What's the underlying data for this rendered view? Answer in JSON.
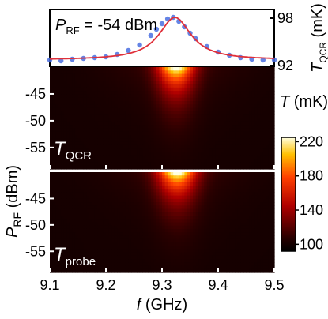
{
  "chart_data": [
    {
      "type": "line",
      "panel": "top",
      "annotation": {
        "main": "P",
        "sub": "RF",
        "rest": " = -54 dBm"
      },
      "ylabel": {
        "main": "T",
        "sub": "QCR",
        "rest": " (mK)"
      },
      "yticks": [
        "92",
        "98"
      ],
      "ylim": [
        92,
        99
      ],
      "xlim": [
        9.1,
        9.5
      ],
      "colors": {
        "data": "#4a6fe0",
        "fit": "#e0303a"
      },
      "series": [
        {
          "kind": "markers",
          "x": [
            9.1,
            9.12,
            9.14,
            9.16,
            9.18,
            9.2,
            9.22,
            9.24,
            9.26,
            9.28,
            9.29,
            9.3,
            9.31,
            9.32,
            9.33,
            9.34,
            9.35,
            9.36,
            9.38,
            9.4,
            9.42,
            9.44,
            9.46,
            9.48,
            9.5
          ],
          "y": [
            92.7,
            92.6,
            92.8,
            92.9,
            93.0,
            93.1,
            93.4,
            93.9,
            94.6,
            95.8,
            96.6,
            97.3,
            97.9,
            98.1,
            97.6,
            96.9,
            96.1,
            95.4,
            94.4,
            93.7,
            93.3,
            93.0,
            92.8,
            92.7,
            92.7
          ]
        },
        {
          "kind": "fit",
          "center": 9.323,
          "width": 0.035,
          "offset": 92.7,
          "amplitude": 5.4
        }
      ]
    },
    {
      "type": "heatmap",
      "panel": "middle",
      "label": {
        "main": "T",
        "sub": "QCR"
      },
      "xlim": [
        9.1,
        9.5
      ],
      "ylim": [
        -59,
        -40
      ],
      "yticks": [
        -45,
        -50,
        -55
      ],
      "z_model": {
        "center": 9.325,
        "width_at_top": 0.032,
        "width_growth": 0.004,
        "peak": 225,
        "base": 100,
        "decay_dbm": 4.2
      }
    },
    {
      "type": "heatmap",
      "panel": "bottom",
      "label": {
        "main": "T",
        "sub": "probe"
      },
      "xlim": [
        9.1,
        9.5
      ],
      "ylim": [
        -59,
        -40
      ],
      "yticks": [
        -45,
        -50,
        -55
      ],
      "z_model": {
        "center": 9.327,
        "width_at_top": 0.034,
        "width_growth": 0.004,
        "peak": 225,
        "base": 100,
        "decay_dbm": 4.2
      }
    }
  ],
  "xaxis": {
    "label": {
      "main": "f",
      "rest": " (GHz)"
    },
    "ticks": [
      "9.1",
      "9.2",
      "9.3",
      "9.4",
      "9.5"
    ],
    "values": [
      9.1,
      9.2,
      9.3,
      9.4,
      9.5
    ]
  },
  "yaxis_shared": {
    "label": {
      "main": "P",
      "sub": "RF",
      "rest": " (dBm)"
    }
  },
  "colorbar": {
    "title": {
      "main": "T",
      "rest": " (mK)"
    },
    "ticks": [
      "220",
      "180",
      "140",
      "100"
    ],
    "values": [
      220,
      180,
      140,
      100
    ],
    "range": [
      92,
      225
    ]
  }
}
